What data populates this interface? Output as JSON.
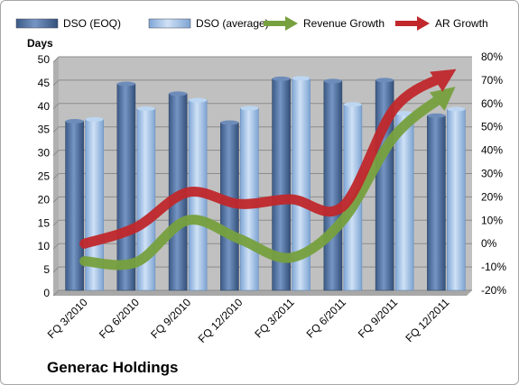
{
  "chart_data": {
    "type": "bar",
    "title": "Generac Holdings",
    "ylabel": "Days",
    "ylim": [
      0,
      50
    ],
    "y2lim": [
      -20,
      80
    ],
    "y2_unit": "%",
    "yticks": [
      0,
      5,
      10,
      15,
      20,
      25,
      30,
      35,
      40,
      45,
      50
    ],
    "y2ticks": [
      -20,
      -10,
      0,
      10,
      20,
      30,
      40,
      50,
      60,
      70,
      80
    ],
    "categories": [
      "FQ 3/2010",
      "FQ 6/2010",
      "FQ 9/2010",
      "FQ 12/2010",
      "FQ 3/2011",
      "FQ 6/2011",
      "FQ 9/2011",
      "FQ 12/2011"
    ],
    "legend_position": "top",
    "series": [
      {
        "name": "DSO (EOQ)",
        "type": "bar",
        "axis": "left",
        "color": "#4a6c9b",
        "values": [
          36.2,
          44.2,
          42.1,
          35.9,
          45.3,
          44.8,
          45.0,
          37.4
        ]
      },
      {
        "name": "DSO (average)",
        "type": "bar",
        "axis": "left",
        "color": "#8fb4de",
        "values": [
          36.6,
          38.9,
          40.7,
          39.0,
          45.4,
          39.8,
          37.9,
          38.8
        ]
      },
      {
        "name": "Revenue Growth",
        "type": "arrow-line",
        "axis": "right",
        "color": "#77a13f",
        "values": [
          -7.5,
          -8,
          10,
          2,
          -6,
          10,
          46,
          64
        ]
      },
      {
        "name": "AR Growth",
        "type": "arrow-line",
        "axis": "right",
        "color": "#c0282c",
        "values": [
          0,
          7,
          22,
          17,
          19,
          16,
          58,
          72
        ]
      }
    ],
    "grid": true,
    "plot_area_color": "#c0c0c0"
  }
}
